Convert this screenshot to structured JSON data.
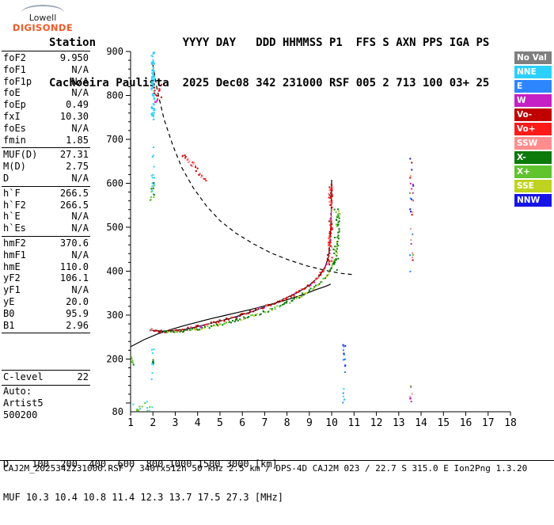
{
  "logo": {
    "line1": "Lowell",
    "line2": "DIGISONDE"
  },
  "header": {
    "line1": "Station             YYYY DAY   DDD HHMMSS P1  FFS S AXN PPS IGA PS",
    "line2": "Cachoeira Paulista  2025 Dec08 342 231000 RSF 005 2 713 100 03+ 25"
  },
  "params": {
    "groups": [
      {
        "rows": [
          [
            "foF2",
            "9.950"
          ],
          [
            "foF1",
            "N/A"
          ],
          [
            "foF1p",
            "N/A"
          ],
          [
            "foE",
            "N/A"
          ],
          [
            "foEp",
            "0.49"
          ],
          [
            "fxI",
            "10.30"
          ],
          [
            "foEs",
            "N/A"
          ],
          [
            "fmin",
            "1.85"
          ]
        ]
      },
      {
        "rows": [
          [
            "MUF(D)",
            "27.31"
          ],
          [
            "M(D)",
            "2.75"
          ],
          [
            "D",
            "N/A"
          ]
        ]
      },
      {
        "rows": [
          [
            "h`F",
            "266.5"
          ],
          [
            "h`F2",
            "266.5"
          ],
          [
            "h`E",
            "N/A"
          ],
          [
            "h`Es",
            "N/A"
          ]
        ]
      },
      {
        "rows": [
          [
            "hmF2",
            "370.6"
          ],
          [
            "hmF1",
            "N/A"
          ],
          [
            "hmE",
            "110.0"
          ],
          [
            "yF2",
            "106.1"
          ],
          [
            "yF1",
            "N/A"
          ],
          [
            "yE",
            "20.0"
          ],
          [
            "B0",
            "95.9"
          ],
          [
            "B1",
            "2.96"
          ]
        ]
      }
    ],
    "clevel": [
      "C-level",
      "22"
    ],
    "footer_rows": [
      "Auto:",
      "Artist5",
      "500200"
    ]
  },
  "legend": [
    {
      "label": "No Val",
      "color": "#7f7f7f"
    },
    {
      "label": "NNE",
      "color": "#2bd0ff"
    },
    {
      "label": "E",
      "color": "#2e86ff"
    },
    {
      "label": "W",
      "color": "#c520c5"
    },
    {
      "label": "Vo-",
      "color": "#c00000"
    },
    {
      "label": "Vo+",
      "color": "#ff1a1a"
    },
    {
      "label": "SSW",
      "color": "#ff8d8d"
    },
    {
      "label": "X-",
      "color": "#0b7a0b"
    },
    {
      "label": "X+",
      "color": "#5fc42d"
    },
    {
      "label": "SSE",
      "color": "#bfd21f"
    },
    {
      "label": "NNW",
      "color": "#1515e6"
    }
  ],
  "bottom": {
    "d_row": "D    100  200  400  600  800 1000 1500 3000 [km]",
    "muf_row": "MUF 10.3 10.4 10.8 11.4 12.3 13.7 17.5 27.3 [MHz]"
  },
  "footer": "CAJ2M_2025342231000.RSF / 340fx512h 50 kHz 2.5 km / DPS-4D CAJ2M 023 / 22.7 S 315.0 E Ion2Png 1.3.20",
  "colors": {
    "logo_accent": "#f05a28",
    "axis": "#000000"
  },
  "chart_data": {
    "type": "scatter",
    "x_axis": {
      "min": 1,
      "max": 18,
      "ticks": [
        1,
        2,
        3,
        4,
        5,
        6,
        7,
        8,
        9,
        10,
        11,
        12,
        13,
        14,
        15,
        16,
        17,
        18
      ],
      "unit": "MHz"
    },
    "y_axis": {
      "min": 80,
      "max": 900,
      "major_ticks": [
        900,
        800,
        700,
        600,
        500,
        400,
        300,
        200
      ],
      "bottom_label": 80,
      "minor_step": 20,
      "unit": "km"
    },
    "curves": [
      {
        "name": "muf-transmission-curve",
        "style": "dashed",
        "color": "#000000",
        "points": [
          [
            2.0,
            870
          ],
          [
            2.2,
            810
          ],
          [
            2.5,
            745
          ],
          [
            2.9,
            685
          ],
          [
            3.3,
            635
          ],
          [
            3.8,
            590
          ],
          [
            4.4,
            548
          ],
          [
            5.0,
            515
          ],
          [
            5.7,
            487
          ],
          [
            6.5,
            462
          ],
          [
            7.3,
            441
          ],
          [
            8.1,
            425
          ],
          [
            8.9,
            412
          ],
          [
            9.7,
            402
          ],
          [
            10.4,
            395
          ],
          [
            11.0,
            392
          ]
        ]
      },
      {
        "name": "true-height-profile",
        "style": "solid",
        "color": "#000000",
        "points": [
          [
            1.0,
            228
          ],
          [
            1.6,
            244
          ],
          [
            2.2,
            257
          ],
          [
            2.8,
            267
          ],
          [
            3.4,
            276
          ],
          [
            4.0,
            284
          ],
          [
            4.6,
            292
          ],
          [
            5.2,
            299
          ],
          [
            5.8,
            306
          ],
          [
            6.4,
            313
          ],
          [
            7.0,
            321
          ],
          [
            7.6,
            329
          ],
          [
            8.2,
            338
          ],
          [
            8.8,
            348
          ],
          [
            9.3,
            358
          ],
          [
            9.7,
            365
          ],
          [
            9.9,
            369
          ],
          [
            9.95,
            371
          ]
        ]
      },
      {
        "name": "fitted-trace",
        "style": "solid",
        "color": "#000000",
        "points": [
          [
            1.85,
            266
          ],
          [
            2.5,
            263
          ],
          [
            3.5,
            268
          ],
          [
            4.5,
            280
          ],
          [
            5.5,
            293
          ],
          [
            6.5,
            309
          ],
          [
            7.5,
            328
          ],
          [
            8.5,
            352
          ],
          [
            9.0,
            368
          ],
          [
            9.4,
            386
          ],
          [
            9.7,
            408
          ],
          [
            9.85,
            432
          ],
          [
            9.93,
            468
          ],
          [
            9.97,
            520
          ],
          [
            9.99,
            570
          ],
          [
            10.0,
            608
          ]
        ]
      }
    ],
    "traces": [
      {
        "name": "o-mode-trace",
        "colors": [
          "#c00000",
          "#ff1a1a",
          "#ff8d8d",
          "#c520c5"
        ],
        "points": [
          [
            1.85,
            266
          ],
          [
            2.1,
            264
          ],
          [
            2.4,
            263
          ],
          [
            2.7,
            263
          ],
          [
            3.0,
            264
          ],
          [
            3.3,
            266
          ],
          [
            3.6,
            269
          ],
          [
            3.9,
            272
          ],
          [
            4.2,
            276
          ],
          [
            4.5,
            280
          ],
          [
            4.8,
            284
          ],
          [
            5.1,
            288
          ],
          [
            5.4,
            292
          ],
          [
            5.7,
            296
          ],
          [
            6.0,
            301
          ],
          [
            6.3,
            306
          ],
          [
            6.6,
            311
          ],
          [
            6.9,
            316
          ],
          [
            7.2,
            322
          ],
          [
            7.5,
            328
          ],
          [
            7.8,
            334
          ],
          [
            8.1,
            341
          ],
          [
            8.4,
            349
          ],
          [
            8.7,
            358
          ],
          [
            9.0,
            368
          ],
          [
            9.2,
            376
          ],
          [
            9.4,
            386
          ],
          [
            9.6,
            400
          ],
          [
            9.75,
            415
          ],
          [
            9.85,
            432
          ],
          [
            9.9,
            448
          ],
          [
            9.93,
            468
          ],
          [
            9.95,
            490
          ],
          [
            9.97,
            520
          ],
          [
            9.98,
            550
          ],
          [
            9.99,
            580
          ],
          [
            10.0,
            600
          ]
        ]
      },
      {
        "name": "x-mode-trace",
        "colors": [
          "#0b7a0b",
          "#5fc42d",
          "#bfd21f"
        ],
        "points": [
          [
            2.5,
            263
          ],
          [
            2.9,
            263
          ],
          [
            3.3,
            264
          ],
          [
            3.7,
            266
          ],
          [
            4.1,
            269
          ],
          [
            4.5,
            273
          ],
          [
            4.9,
            277
          ],
          [
            5.3,
            282
          ],
          [
            5.7,
            287
          ],
          [
            6.1,
            293
          ],
          [
            6.5,
            299
          ],
          [
            6.9,
            306
          ],
          [
            7.3,
            313
          ],
          [
            7.7,
            321
          ],
          [
            8.1,
            330
          ],
          [
            8.5,
            340
          ],
          [
            8.9,
            352
          ],
          [
            9.2,
            362
          ],
          [
            9.5,
            375
          ],
          [
            9.8,
            392
          ],
          [
            10.0,
            408
          ],
          [
            10.1,
            420
          ],
          [
            10.2,
            436
          ],
          [
            10.25,
            452
          ],
          [
            10.28,
            472
          ],
          [
            10.3,
            495
          ],
          [
            10.32,
            520
          ],
          [
            10.33,
            540
          ]
        ]
      }
    ],
    "noise_clusters": [
      {
        "name": "rfi-column-2mhz-top",
        "colors": [
          "#2bd0ff"
        ],
        "f": [
          1.93,
          2.08
        ],
        "h": [
          745,
          900
        ],
        "n": 80,
        "seed": 11
      },
      {
        "name": "rfi-column-2mhz-mid",
        "colors": [
          "#2bd0ff"
        ],
        "f": [
          1.94,
          2.06
        ],
        "h": [
          570,
          745
        ],
        "n": 14,
        "seed": 12
      },
      {
        "name": "rfi-column-2mhz-low",
        "colors": [
          "#2bd0ff"
        ],
        "f": [
          1.94,
          2.06
        ],
        "h": [
          150,
          260
        ],
        "n": 9,
        "seed": 13
      },
      {
        "name": "rfi-bottom-left",
        "colors": [
          "#2bd0ff",
          "#5fc42d"
        ],
        "f": [
          1.05,
          2.1
        ],
        "h": [
          82,
          105
        ],
        "n": 14,
        "seed": 14
      },
      {
        "name": "spread-echo-800km",
        "colors": [
          "#c00000",
          "#ff1a1a",
          "#c520c5"
        ],
        "f": [
          2.05,
          2.4
        ],
        "h": [
          780,
          832
        ],
        "n": 14,
        "seed": 15
      },
      {
        "name": "oblique-streak",
        "type": "streak",
        "colors": [
          "#c00000",
          "#ff1a1a",
          "#ff8d8d"
        ],
        "f": [
          3.3,
          4.35
        ],
        "h": [
          668,
          612
        ],
        "n": 26,
        "seed": 16
      },
      {
        "name": "green-patch-600km",
        "colors": [
          "#0b7a0b",
          "#5fc42d"
        ],
        "f": [
          1.86,
          2.12
        ],
        "h": [
          558,
          612
        ],
        "n": 10,
        "seed": 17
      },
      {
        "name": "green-patch-left",
        "colors": [
          "#0b7a0b",
          "#5fc42d"
        ],
        "f": [
          1.02,
          1.18
        ],
        "h": [
          182,
          206
        ],
        "n": 6,
        "seed": 18
      },
      {
        "name": "green-dot-2mhz-200km",
        "colors": [
          "#0b7a0b"
        ],
        "f": [
          1.95,
          2.05
        ],
        "h": [
          188,
          200
        ],
        "n": 3,
        "seed": 25
      },
      {
        "name": "cusp-spread-o",
        "colors": [
          "#c00000",
          "#ff1a1a",
          "#ff8d8d"
        ],
        "f": [
          9.86,
          10.03
        ],
        "h": [
          400,
          600
        ],
        "n": 40,
        "seed": 19
      },
      {
        "name": "cusp-spread-x",
        "colors": [
          "#0b7a0b",
          "#5fc42d"
        ],
        "f": [
          10.08,
          10.3
        ],
        "h": [
          390,
          545
        ],
        "n": 26,
        "seed": 20
      },
      {
        "name": "rfi-column-10mhz",
        "colors": [
          "#2e86ff",
          "#1515e6"
        ],
        "f": [
          10.5,
          10.62
        ],
        "h": [
          165,
          265
        ],
        "n": 12,
        "seed": 21
      },
      {
        "name": "rfi-column-10mhz-low",
        "colors": [
          "#2e86ff",
          "#2bd0ff"
        ],
        "f": [
          10.5,
          10.6
        ],
        "h": [
          95,
          150
        ],
        "n": 6,
        "seed": 22
      },
      {
        "name": "rfi-column-13mhz",
        "colors": [
          "#c520c5",
          "#ff8d8d",
          "#5fc42d",
          "#2e86ff",
          "#c00000",
          "#1515e6"
        ],
        "f": [
          13.5,
          13.66
        ],
        "h": [
          380,
          660
        ],
        "n": 30,
        "seed": 23
      },
      {
        "name": "rfi-column-13mhz-low",
        "colors": [
          "#ff8d8d",
          "#5fc42d",
          "#c520c5"
        ],
        "f": [
          13.5,
          13.62
        ],
        "h": [
          86,
          140
        ],
        "n": 8,
        "seed": 24
      }
    ]
  }
}
